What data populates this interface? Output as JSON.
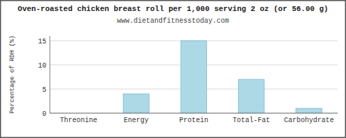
{
  "chart_data": {
    "type": "bar",
    "title": "Oven-roasted chicken breast roll per 1,000 serving 2 oz (or 56.00 g)",
    "subtitle": "www.dietandfitnesstoday.com",
    "ylabel": "Percentage of RDH (%)",
    "categories": [
      "Threonine",
      "Energy",
      "Protein",
      "Total-Fat",
      "Carbohydrate"
    ],
    "values": [
      0,
      4,
      15,
      7,
      1
    ],
    "color": "#add8e6",
    "ylim": [
      0,
      16
    ],
    "yticks": [
      0,
      5,
      10,
      15
    ],
    "grid": true
  }
}
